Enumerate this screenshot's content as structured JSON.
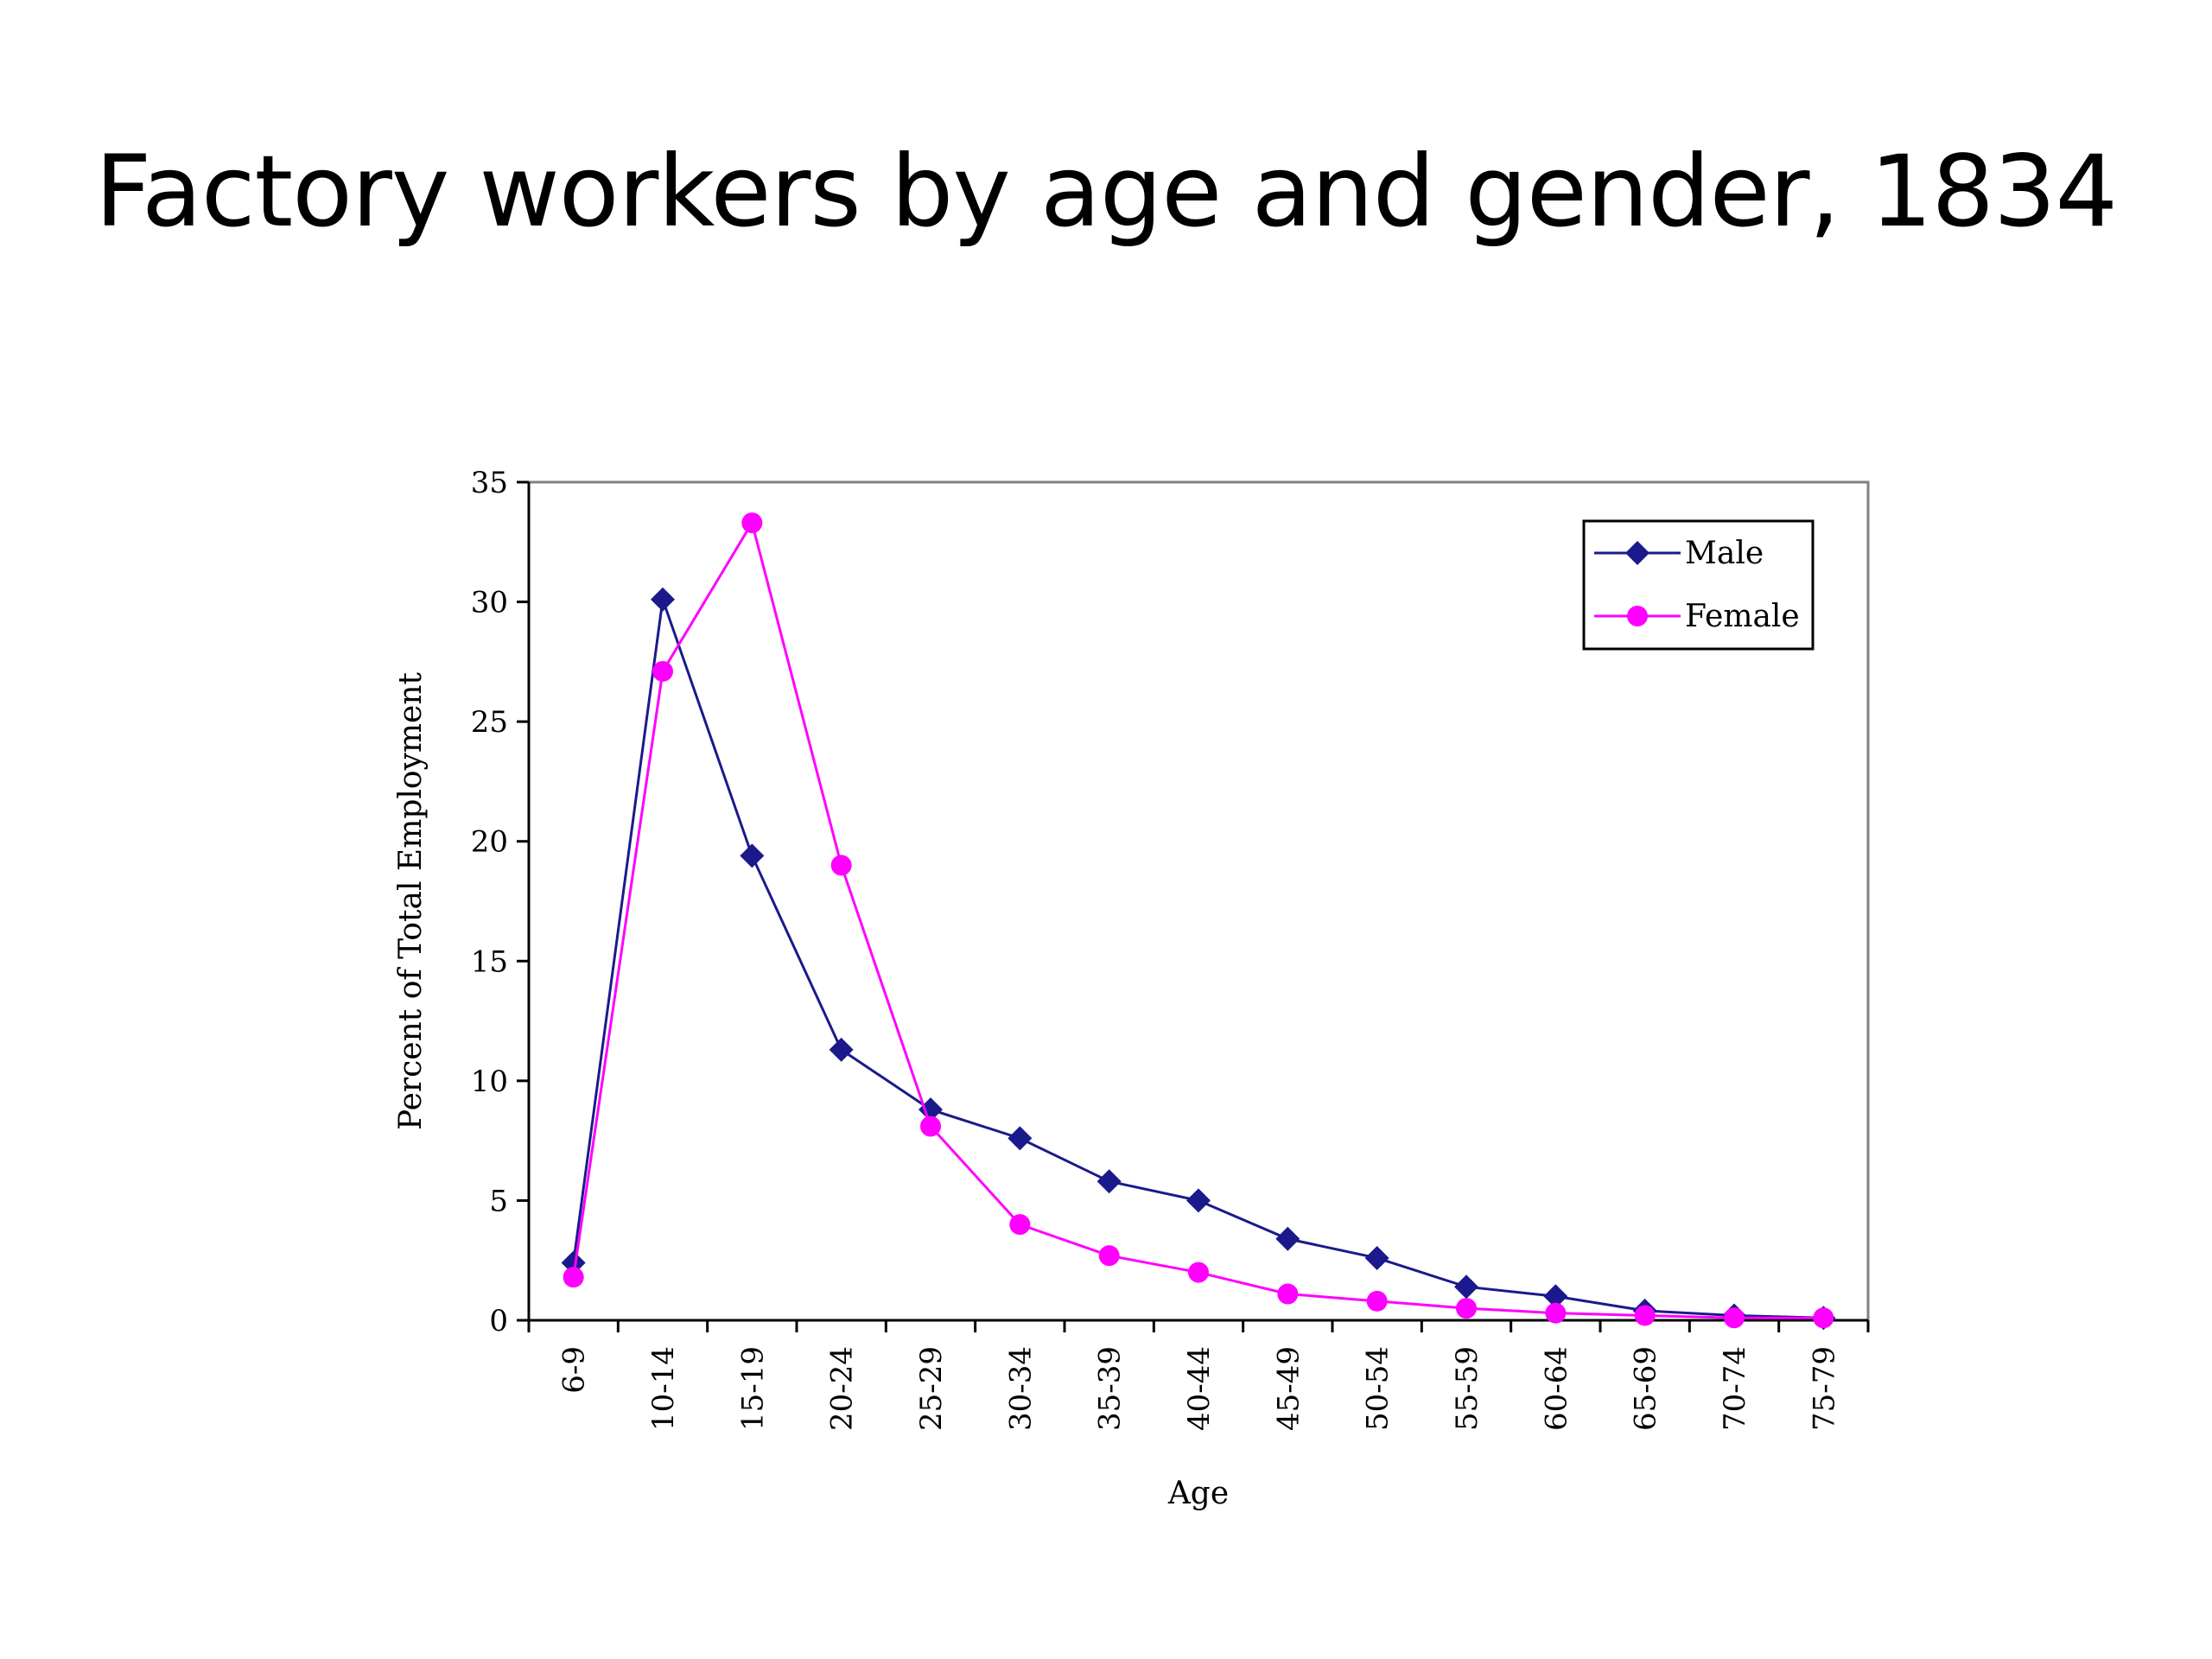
{
  "chart_data": {
    "type": "line",
    "title": "Factory workers by age and gender, 1834",
    "xlabel": "Age",
    "ylabel": "Percent of Total Employment",
    "ylim": [
      0,
      35
    ],
    "yticks": [
      "0",
      "5",
      "10",
      "15",
      "20",
      "25",
      "30",
      "35"
    ],
    "categories": [
      "6-9",
      "10-14",
      "15-19",
      "20-24",
      "25-29",
      "30-34",
      "35-39",
      "40-44",
      "45-49",
      "50-54",
      "55-59",
      "60-64",
      "65-69",
      "70-74",
      "75-79"
    ],
    "series": [
      {
        "name": "Male",
        "color": "#1a1a8c",
        "marker": "diamond",
        "values": [
          2.4,
          30.1,
          19.4,
          11.3,
          8.8,
          7.6,
          5.8,
          5.0,
          3.4,
          2.6,
          1.4,
          1.0,
          0.4,
          0.2,
          0.1
        ]
      },
      {
        "name": "Female",
        "color": "#ff00ff",
        "marker": "circle",
        "values": [
          1.8,
          27.1,
          33.3,
          19.0,
          8.1,
          4.0,
          2.7,
          2.0,
          1.1,
          0.8,
          0.5,
          0.3,
          0.2,
          0.1,
          0.1
        ]
      }
    ],
    "legend_position": "top-right",
    "grid": false
  }
}
